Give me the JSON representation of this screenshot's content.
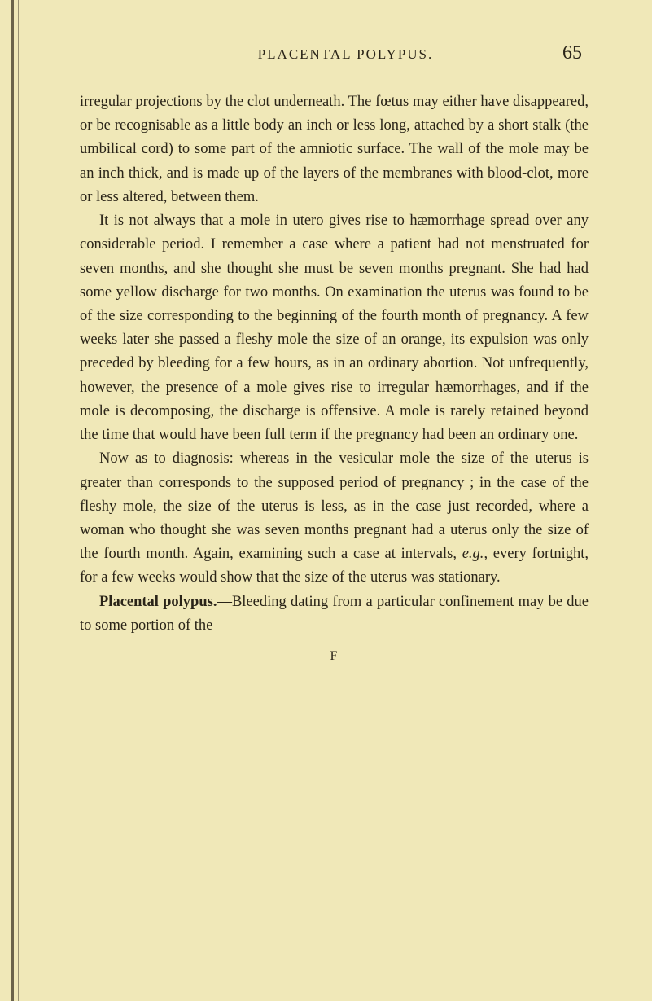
{
  "page": {
    "running_head": "PLACENTAL POLYPUS.",
    "page_number": "65",
    "signature": "F",
    "background_color": "#f0e8b8",
    "text_color": "#2a2418",
    "body_fontsize": 18.5,
    "line_height": 1.58
  },
  "paragraphs": {
    "p1": "irregular projections by the clot underneath. The fœtus may either have disappeared, or be recognisable as a little body an inch or less long, attached by a short stalk (the umbilical cord) to some part of the amniotic surface. The wall of the mole may be an inch thick, and is made up of the layers of the membranes with blood-clot, more or less altered, between them.",
    "p2": "It is not always that a mole in utero gives rise to hæmorrhage spread over any considerable period. I remember a case where a patient had not menstruated for seven months, and she thought she must be seven months pregnant. She had had some yellow discharge for two months. On examination the uterus was found to be of the size corresponding to the beginning of the fourth month of pregnancy. A few weeks later she passed a fleshy mole the size of an orange, its expulsion was only preceded by bleeding for a few hours, as in an ordinary abortion. Not unfrequently, however, the presence of a mole gives rise to irregular hæmorrhages, and if the mole is decomposing, the discharge is offensive. A mole is rarely retained beyond the time that would have been full term if the pregnancy had been an ordinary one.",
    "p3_a": "Now as to diagnosis: whereas in the vesicular mole the size of the uterus is greater than corresponds to the supposed period of pregnancy ; in the case of the fleshy mole, the size of the uterus is less, as in the case just recorded, where a woman who thought she was seven months pregnant had a uterus only the size of the fourth month. Again, examining such a case at intervals, ",
    "p3_eg": "e.g.",
    "p3_b": ", every fortnight, for a few weeks would show that the size of the uterus was stationary.",
    "p4_term": "Placental polypus.",
    "p4_rest": "—Bleeding dating from a particular confinement may be due to some portion of the"
  }
}
